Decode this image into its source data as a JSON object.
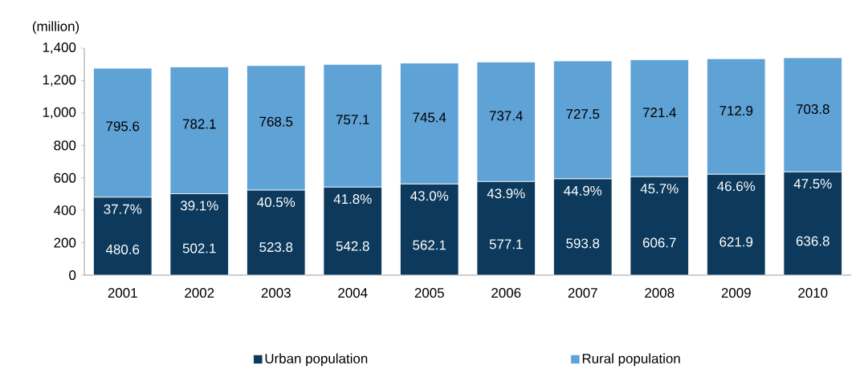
{
  "chart_data": {
    "type": "bar",
    "stacked": true,
    "ylabel": "(million)",
    "categories": [
      "2001",
      "2002",
      "2003",
      "2004",
      "2005",
      "2006",
      "2007",
      "2008",
      "2009",
      "2010"
    ],
    "series": [
      {
        "name": "Urban population",
        "color": "#0d3a5c",
        "values": [
          480.6,
          502.1,
          523.8,
          542.8,
          562.1,
          577.1,
          593.8,
          606.7,
          621.9,
          636.8
        ]
      },
      {
        "name": "Rural population",
        "color": "#5fa2d6",
        "values": [
          795.6,
          782.1,
          768.5,
          757.1,
          745.4,
          737.4,
          727.5,
          721.4,
          712.9,
          703.8
        ]
      }
    ],
    "ylim": [
      0,
      1400
    ],
    "yticks": [
      0,
      200,
      400,
      600,
      800,
      {
        "value": 1000,
        "label": "1,000"
      },
      {
        "value": 1200,
        "label": "1,200"
      },
      {
        "value": 1400,
        "label": "1,400"
      }
    ],
    "data_labels": true,
    "legend": "bottom",
    "grid": false,
    "annotations": [
      {
        "text": "37.7%",
        "x": "2001",
        "y": 480.6
      },
      {
        "text": "39.1%",
        "x": "2002",
        "y": 502.1
      },
      {
        "text": "40.5%",
        "x": "2003",
        "y": 523.8
      },
      {
        "text": "41.8%",
        "x": "2004",
        "y": 542.8
      },
      {
        "text": "43.0%",
        "x": "2005",
        "y": 562.1
      },
      {
        "text": "43.9%",
        "x": "2006",
        "y": 577.1
      },
      {
        "text": "44.9%",
        "x": "2007",
        "y": 593.8
      },
      {
        "text": "45.7%",
        "x": "2008",
        "y": 606.7
      },
      {
        "text": "46.6%",
        "x": "2009",
        "y": 621.9
      },
      {
        "text": "47.5%",
        "x": "2010",
        "y": 636.8
      }
    ]
  }
}
